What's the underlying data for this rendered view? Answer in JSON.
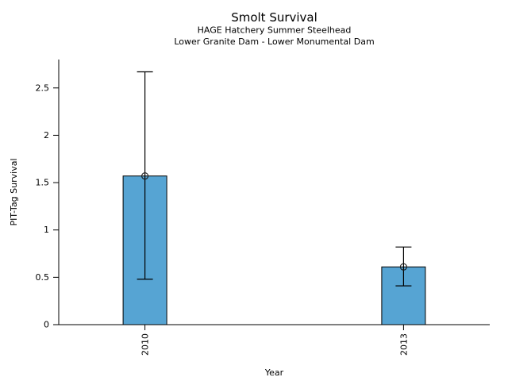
{
  "page": {
    "background": "#ffffff"
  },
  "chart_data": {
    "type": "bar",
    "title": "Smolt Survival",
    "subtitle_lines": [
      "HAGE Hatchery Summer Steelhead",
      "Lower Granite Dam - Lower Monumental Dam"
    ],
    "xlabel": "Year",
    "ylabel": "PIT-Tag Survival",
    "categories": [
      "2010",
      "2013"
    ],
    "values": [
      1.57,
      0.61
    ],
    "error_low": [
      0.48,
      0.41
    ],
    "error_high": [
      2.67,
      0.82
    ],
    "y_ticks": [
      0,
      0.5,
      1,
      1.5,
      2,
      2.5
    ],
    "ylim": [
      0,
      2.8
    ],
    "grid": false,
    "legend": false,
    "marker": "open-circle",
    "colors": {
      "bar_fill": "#56A4D3",
      "bar_stroke": "#000000",
      "error_bar": "#000000",
      "marker_stroke": "#1a1a1a",
      "axis": "#000000",
      "text": "#000000"
    }
  }
}
